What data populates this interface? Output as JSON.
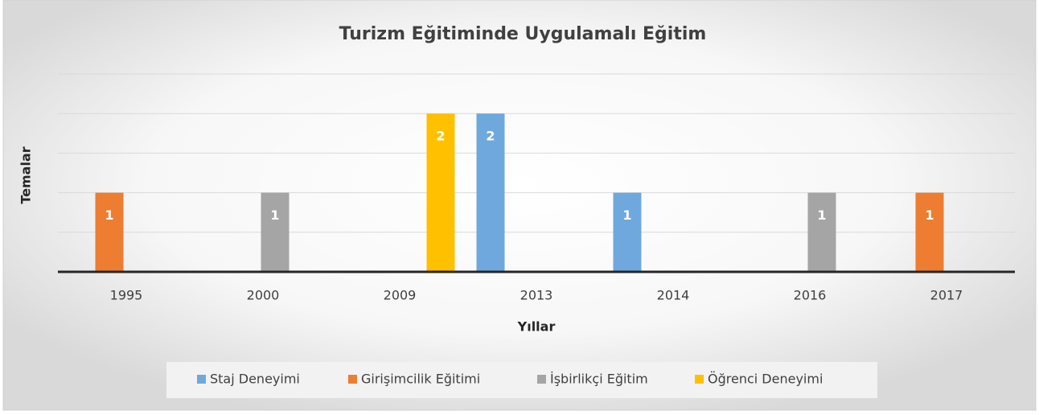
{
  "chart_data": {
    "type": "bar",
    "title": "Turizm Eğitiminde Uygulamalı Eğitim",
    "x_label": "Yıllar",
    "y_label": "Temalar",
    "categories": [
      "1995",
      "2000",
      "2009",
      "2013",
      "2014",
      "2016",
      "2017"
    ],
    "series": [
      {
        "name": "Staj Deneyimi",
        "color": "#6fa8dc",
        "values": [
          null,
          null,
          null,
          2,
          1,
          null,
          null
        ]
      },
      {
        "name": "Girişimcilik Eğitimi",
        "color": "#ed7d31",
        "values": [
          1,
          null,
          null,
          null,
          null,
          null,
          1
        ]
      },
      {
        "name": "İşbirlikçi Eğitim",
        "color": "#a5a5a5",
        "values": [
          null,
          1,
          null,
          null,
          null,
          1,
          null
        ]
      },
      {
        "name": "Öğrenci Deneyimi",
        "color": "#ffc000",
        "values": [
          null,
          null,
          2,
          null,
          null,
          null,
          null
        ]
      }
    ],
    "ylim": [
      0,
      2.5
    ],
    "yticks": [
      0,
      0.5,
      1,
      1.5,
      2,
      2.5
    ],
    "grid": true,
    "legend": "bottom"
  }
}
